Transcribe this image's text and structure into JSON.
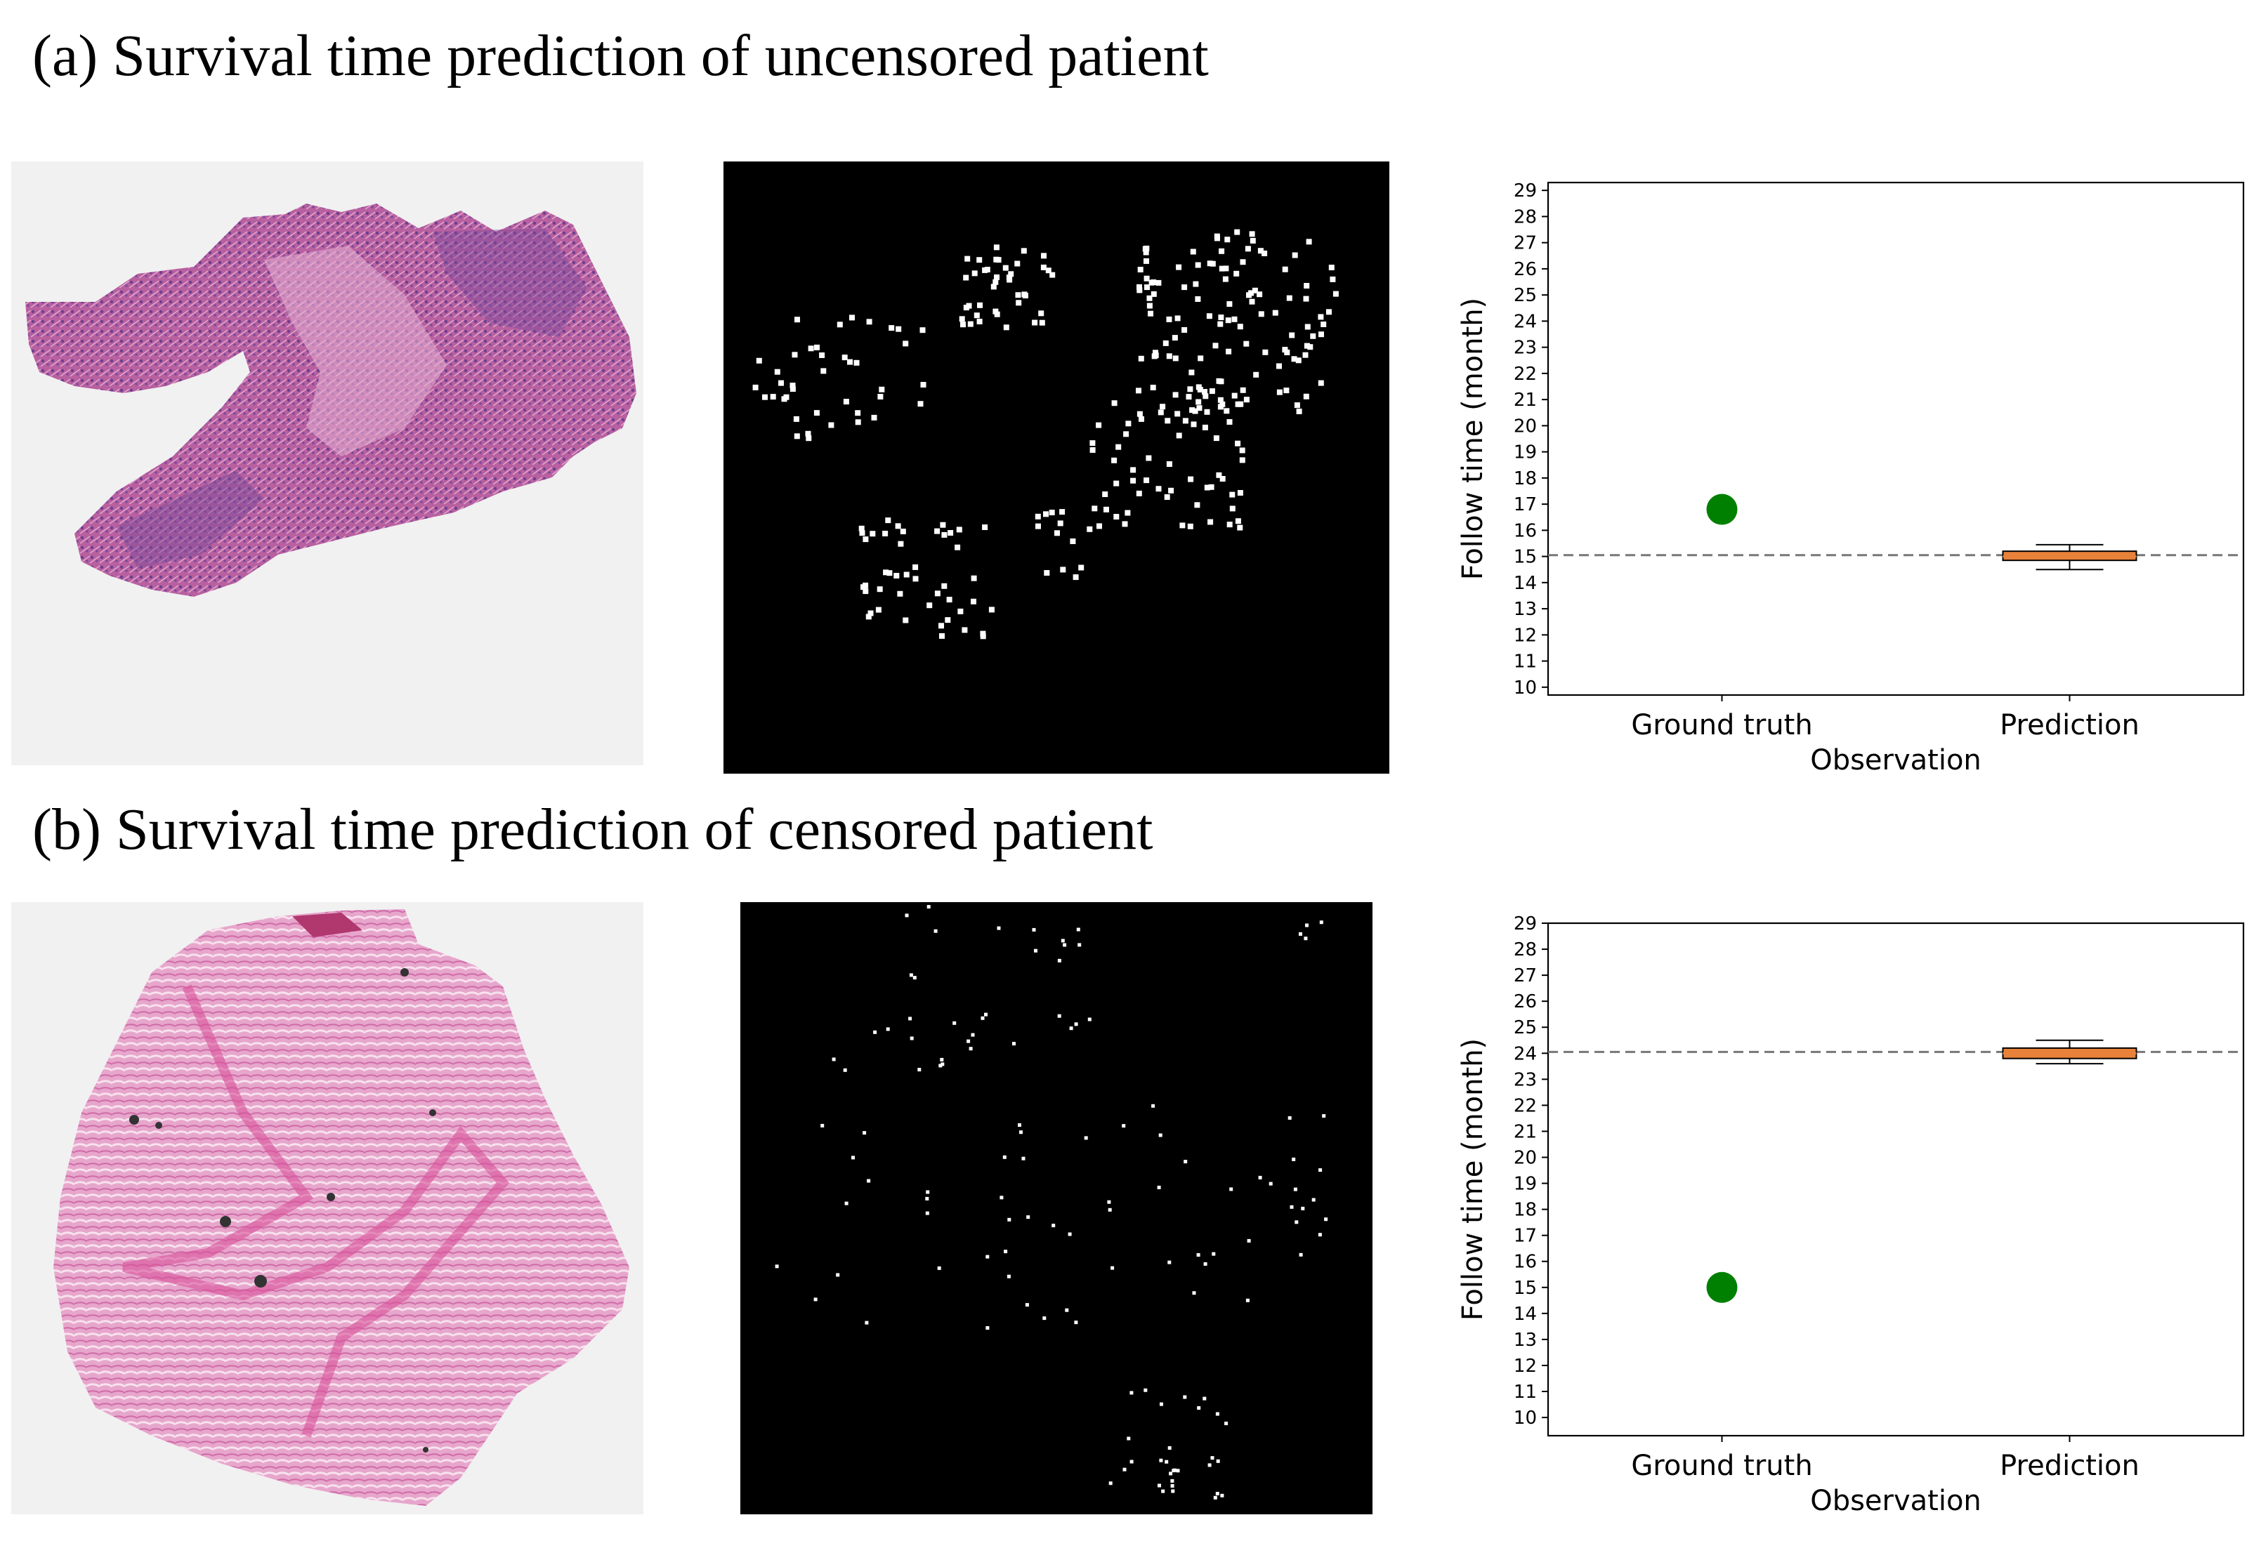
{
  "panels": [
    {
      "title": "(a) Survival time prediction of uncensored patient"
    },
    {
      "title": "(b) Survival time prediction of censored patient"
    }
  ],
  "colors": {
    "ground_truth_marker": "#008000",
    "box_fill": "#e8823a",
    "box_edge": "#000000",
    "median_line": "#e8823a",
    "reference_line": "#777777",
    "heatmap_background": "#000000",
    "heatmap_dot": "#ffffff",
    "tissue_a": "#b85f9e",
    "tissue_b": "#e29ac4"
  },
  "chart_data": [
    {
      "type": "scatter+box",
      "categories": [
        "Ground truth",
        "Prediction"
      ],
      "xlabel": "Observation",
      "ylabel": "Follow time (month)",
      "ylim": [
        9.7,
        29.3
      ],
      "yticks": [
        10,
        11,
        12,
        13,
        14,
        15,
        16,
        17,
        18,
        19,
        20,
        21,
        22,
        23,
        24,
        25,
        26,
        27,
        28,
        29
      ],
      "ground_truth": 16.8,
      "prediction_box": {
        "whisker_low": 14.5,
        "q1": 14.85,
        "median": 15.0,
        "q3": 15.2,
        "whisker_high": 15.45
      },
      "reference_line": 15.05,
      "grid": false
    },
    {
      "type": "scatter+box",
      "categories": [
        "Ground truth",
        "Prediction"
      ],
      "xlabel": "Observation",
      "ylabel": "Follow time (month)",
      "ylim": [
        9.3,
        29.0
      ],
      "yticks": [
        10,
        11,
        12,
        13,
        14,
        15,
        16,
        17,
        18,
        19,
        20,
        21,
        22,
        23,
        24,
        25,
        26,
        27,
        28,
        29
      ],
      "ground_truth": 15.0,
      "prediction_box": {
        "whisker_low": 23.6,
        "q1": 23.8,
        "median": 24.0,
        "q3": 24.2,
        "whisker_high": 24.5
      },
      "reference_line": 24.05,
      "grid": false
    }
  ]
}
